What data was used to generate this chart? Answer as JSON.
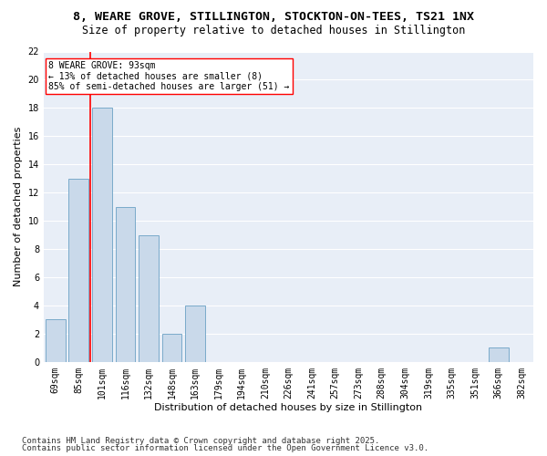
{
  "title1": "8, WEARE GROVE, STILLINGTON, STOCKTON-ON-TEES, TS21 1NX",
  "title2": "Size of property relative to detached houses in Stillington",
  "xlabel": "Distribution of detached houses by size in Stillington",
  "ylabel": "Number of detached properties",
  "categories": [
    "69sqm",
    "85sqm",
    "101sqm",
    "116sqm",
    "132sqm",
    "148sqm",
    "163sqm",
    "179sqm",
    "194sqm",
    "210sqm",
    "226sqm",
    "241sqm",
    "257sqm",
    "273sqm",
    "288sqm",
    "304sqm",
    "319sqm",
    "335sqm",
    "351sqm",
    "366sqm",
    "382sqm"
  ],
  "values": [
    3,
    13,
    18,
    11,
    9,
    2,
    4,
    0,
    0,
    0,
    0,
    0,
    0,
    0,
    0,
    0,
    0,
    0,
    0,
    1,
    0
  ],
  "bar_color": "#c9d9ea",
  "bar_edge_color": "#7aaaca",
  "redline_x": 1.5,
  "annotation_text": "8 WEARE GROVE: 93sqm\n← 13% of detached houses are smaller (8)\n85% of semi-detached houses are larger (51) →",
  "annotation_box_color": "white",
  "annotation_box_edge": "red",
  "ylim": [
    0,
    22
  ],
  "yticks": [
    0,
    2,
    4,
    6,
    8,
    10,
    12,
    14,
    16,
    18,
    20,
    22
  ],
  "footer1": "Contains HM Land Registry data © Crown copyright and database right 2025.",
  "footer2": "Contains public sector information licensed under the Open Government Licence v3.0.",
  "background_color": "#ffffff",
  "plot_bg_color": "#e8eef7",
  "grid_color": "#ffffff",
  "title_fontsize": 9.5,
  "subtitle_fontsize": 8.5,
  "tick_fontsize": 7,
  "label_fontsize": 8,
  "footer_fontsize": 6.5
}
